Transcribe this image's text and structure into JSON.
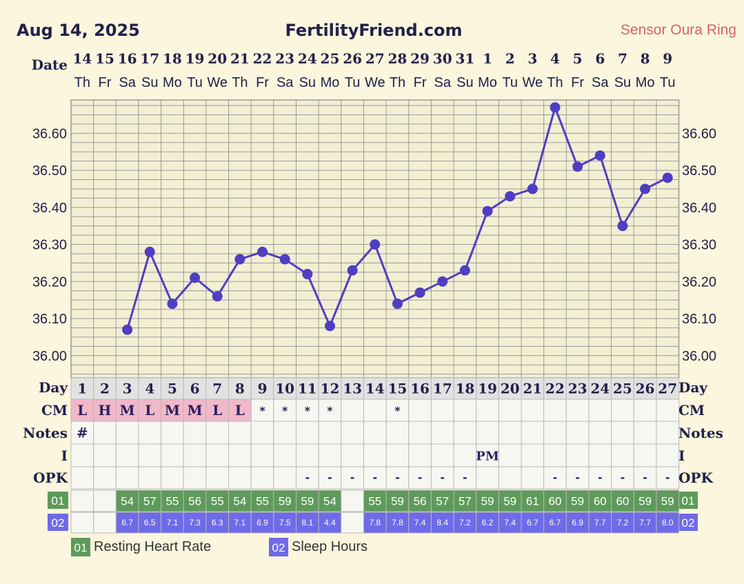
{
  "header": {
    "date": "Aug 14, 2025",
    "site": "FertilityFriend.com",
    "sensor": "Sensor Oura Ring"
  },
  "labels": {
    "date": "Date",
    "day": "Day",
    "cm": "CM",
    "notes": "Notes",
    "i": "I",
    "opk": "OPK",
    "hr_badge": "01",
    "sleep_badge": "02"
  },
  "legend": {
    "hr_badge": "01",
    "hr_label": "Resting Heart Rate",
    "sleep_badge": "02",
    "sleep_label": "Sleep Hours"
  },
  "colors": {
    "line": "#4f3ec2",
    "hr_cell": "#5e9a5a",
    "sleep_cell": "#6f6ae8",
    "cm_cell": "#f0b8c8",
    "day_cell": "#e2e2e2",
    "grid": "#9a9a9a",
    "plot_bg": "#f3efd3"
  },
  "chart_data": {
    "type": "line",
    "ylim": [
      35.94,
      36.69
    ],
    "ylabel": "",
    "xlabel": "",
    "ytick_values": [
      36.0,
      36.1,
      36.2,
      36.3,
      36.4,
      36.5,
      36.6
    ],
    "ytick_labels": [
      "36.00",
      "36.10",
      "36.20",
      "36.30",
      "36.40",
      "36.50",
      "36.60"
    ],
    "dates": [
      "14",
      "15",
      "16",
      "17",
      "18",
      "19",
      "20",
      "21",
      "22",
      "23",
      "24",
      "25",
      "26",
      "27",
      "28",
      "29",
      "30",
      "31",
      "1",
      "2",
      "3",
      "4",
      "5",
      "6",
      "7",
      "8",
      "9"
    ],
    "weekdays": [
      "Th",
      "Fr",
      "Sa",
      "Su",
      "Mo",
      "Tu",
      "We",
      "Th",
      "Fr",
      "Sa",
      "Su",
      "Mo",
      "Tu",
      "We",
      "Th",
      "Fr",
      "Sa",
      "Su",
      "Mo",
      "Tu",
      "We",
      "Th",
      "Fr",
      "Sa",
      "Su",
      "Mo",
      "Tu"
    ],
    "cycle_days": [
      "1",
      "2",
      "3",
      "4",
      "5",
      "6",
      "7",
      "8",
      "9",
      "10",
      "11",
      "12",
      "13",
      "14",
      "15",
      "16",
      "17",
      "18",
      "19",
      "20",
      "21",
      "22",
      "23",
      "24",
      "25",
      "26",
      "27"
    ],
    "series": [
      {
        "values": [
          null,
          null,
          36.07,
          36.28,
          36.14,
          36.21,
          36.16,
          36.26,
          36.28,
          36.26,
          36.22,
          36.08,
          36.23,
          36.3,
          36.14,
          36.17,
          36.2,
          36.23,
          36.39,
          36.43,
          36.45,
          36.67,
          36.51,
          36.54,
          36.35,
          36.45,
          36.48
        ]
      }
    ],
    "cm": [
      "L",
      "H",
      "M",
      "L",
      "M",
      "M",
      "L",
      "L",
      "*",
      "*",
      "*",
      "*",
      "",
      "",
      "*",
      "",
      "",
      "",
      "",
      "",
      "",
      "",
      "",
      "",
      "",
      "",
      ""
    ],
    "notes": [
      "#",
      "",
      "",
      "",
      "",
      "",
      "",
      "",
      "",
      "",
      "",
      "",
      "",
      "",
      "",
      "",
      "",
      "",
      "",
      "",
      "",
      "",
      "",
      "",
      "",
      "",
      ""
    ],
    "intercourse": [
      "",
      "",
      "",
      "",
      "",
      "",
      "",
      "",
      "",
      "",
      "",
      "",
      "",
      "",
      "",
      "",
      "",
      "",
      "PM",
      "",
      "",
      "",
      "",
      "",
      "",
      "",
      ""
    ],
    "opk": [
      "",
      "",
      "",
      "",
      "",
      "",
      "",
      "",
      "",
      "",
      "-",
      "-",
      "-",
      "-",
      "-",
      "-",
      "-",
      "-",
      "",
      "",
      "",
      "-",
      "-",
      "-",
      "-",
      "-",
      "-"
    ],
    "resting_heart_rate": [
      "",
      "",
      "54",
      "57",
      "55",
      "56",
      "55",
      "54",
      "55",
      "59",
      "59",
      "54",
      "",
      "55",
      "59",
      "56",
      "57",
      "57",
      "59",
      "59",
      "61",
      "60",
      "59",
      "60",
      "60",
      "59",
      "59"
    ],
    "sleep_hours": [
      "",
      "",
      "6.7",
      "6.5",
      "7.1",
      "7.3",
      "6.3",
      "7.1",
      "6.9",
      "7.5",
      "8.1",
      "4.4",
      "",
      "7.8",
      "7.8",
      "7.4",
      "8.4",
      "7.2",
      "6.2",
      "7.4",
      "6.7",
      "6.7",
      "6.9",
      "7.7",
      "7.2",
      "7.7",
      "8.0"
    ]
  }
}
